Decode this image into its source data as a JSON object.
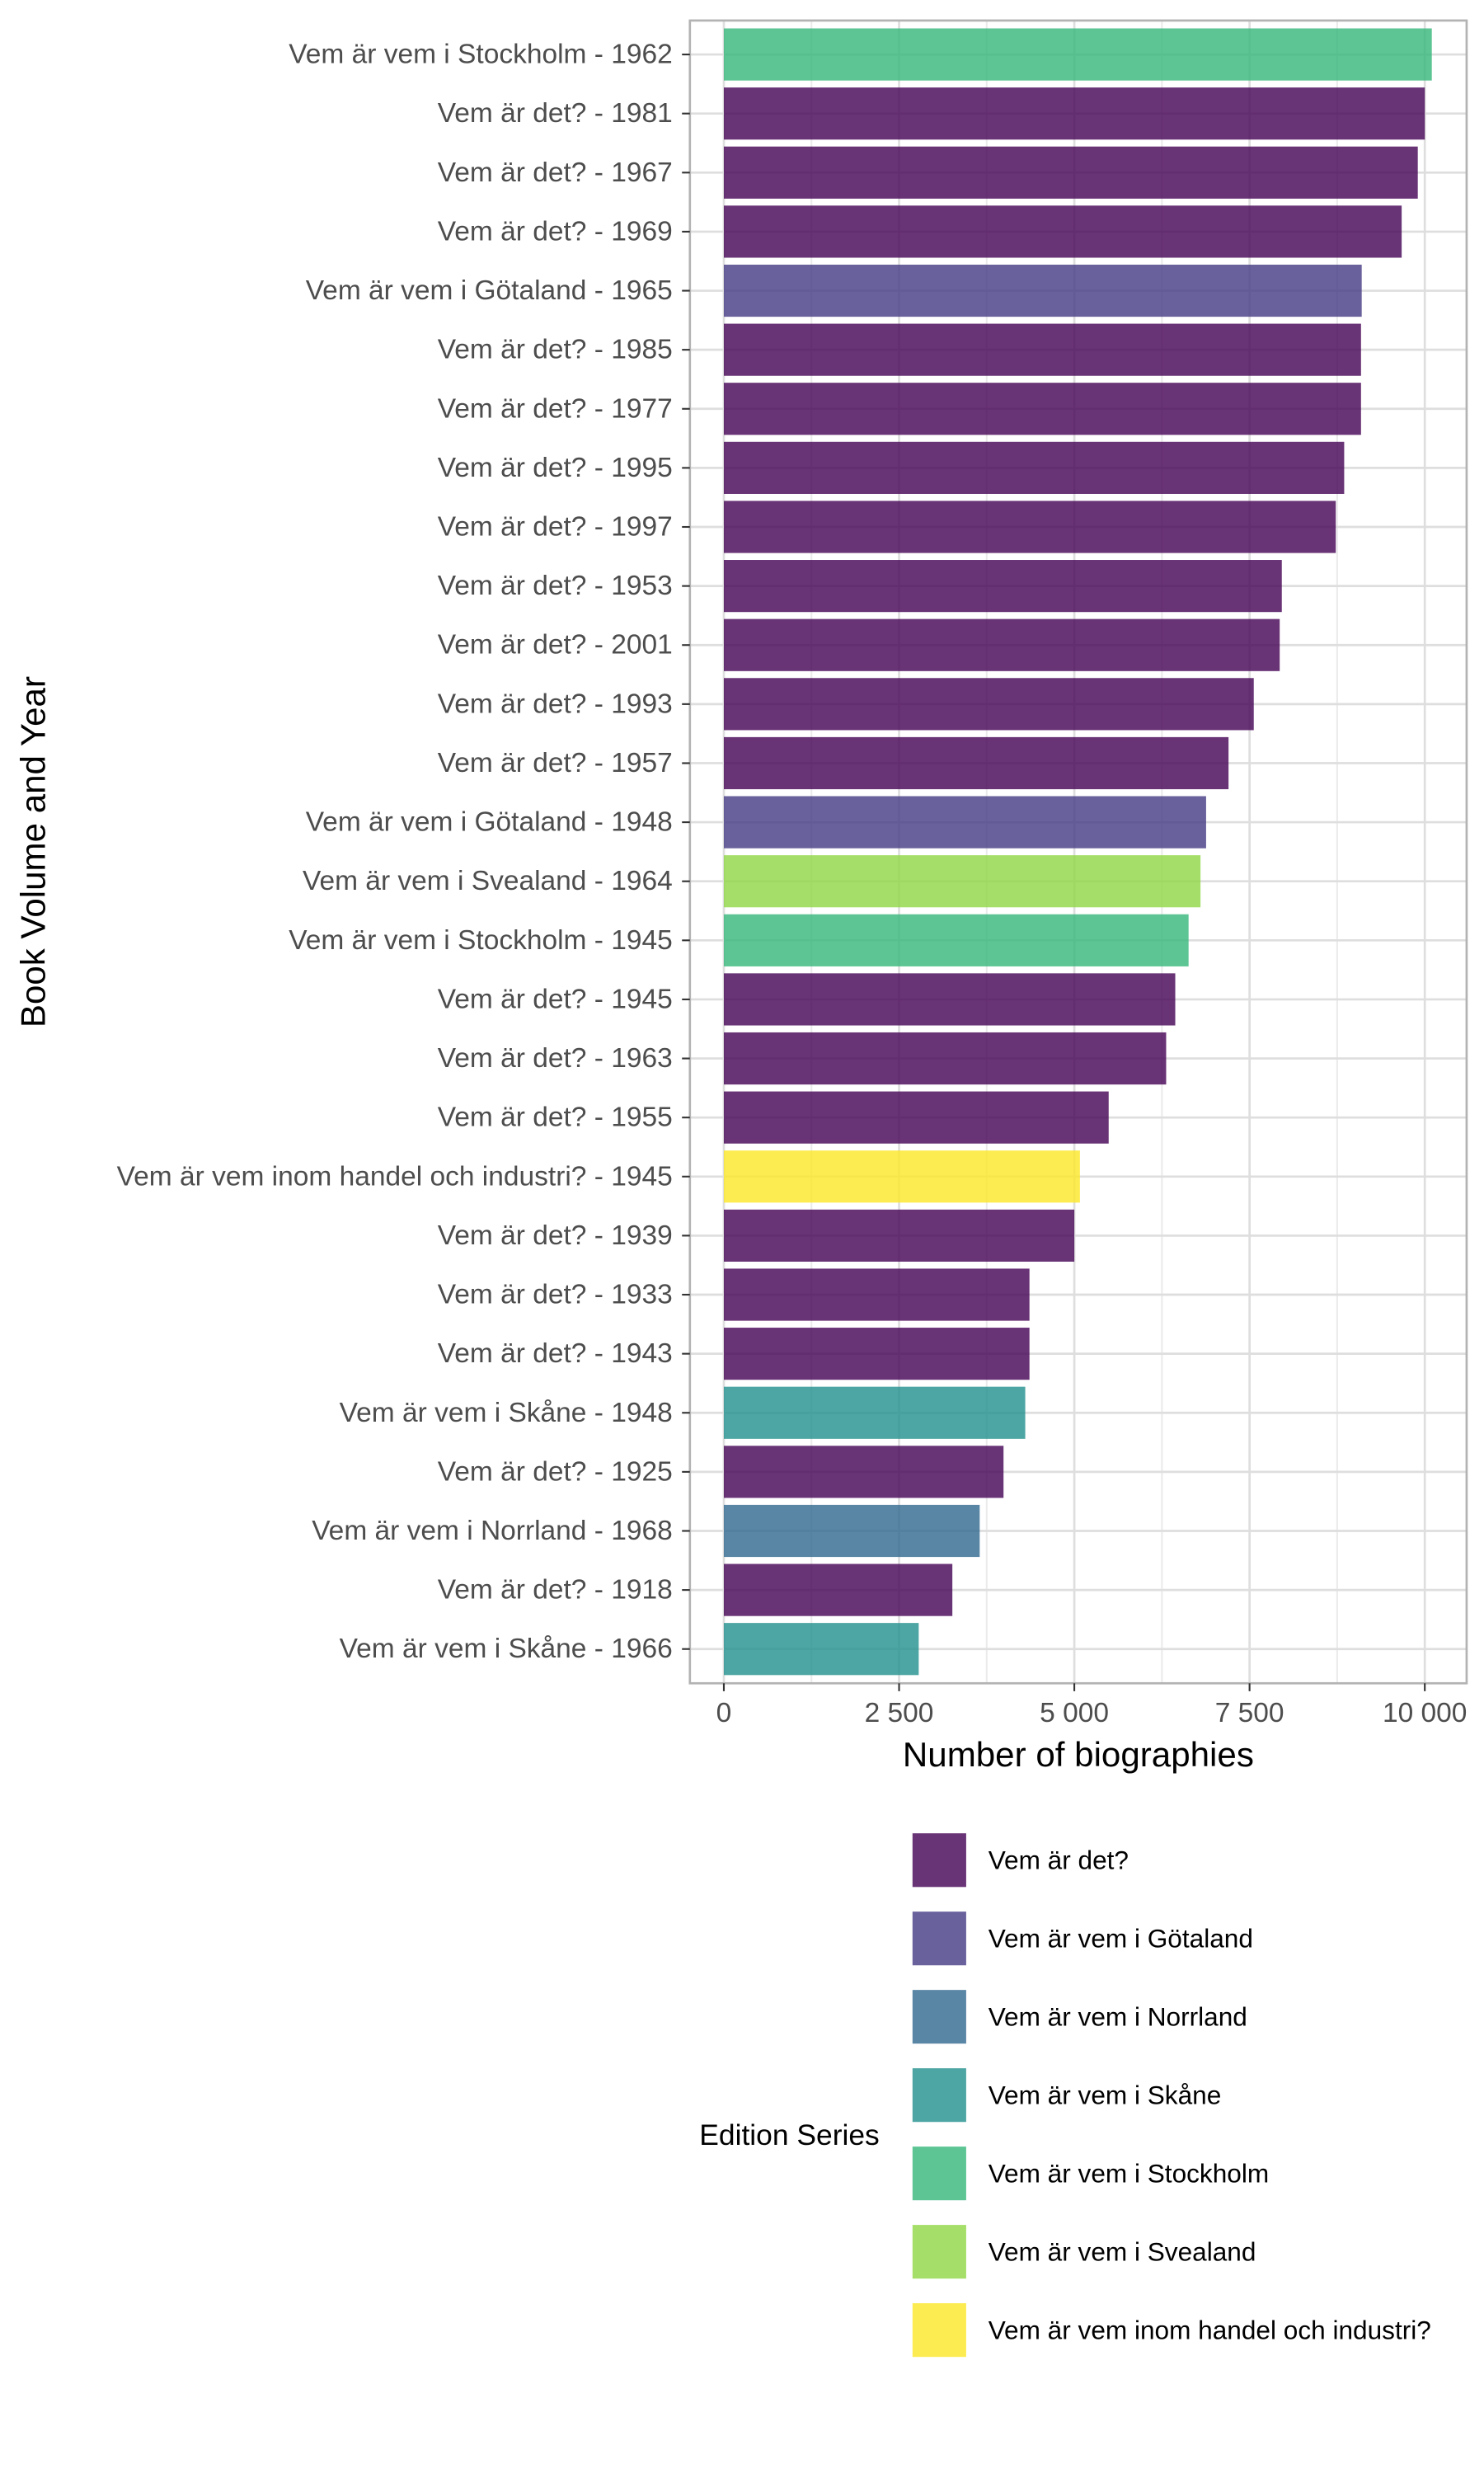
{
  "chart_data": {
    "type": "bar",
    "orientation": "horizontal",
    "xlabel": "Number of biographies",
    "ylabel": "Book Volume and Year",
    "xlim": [
      0,
      10100
    ],
    "xticks": [
      0,
      2500,
      5000,
      7500,
      10000
    ],
    "xtick_labels": [
      "0",
      "2 500",
      "5 000",
      "7 500",
      "10 000"
    ],
    "grid": true,
    "legend": {
      "title": "Edition Series",
      "position": "bottom",
      "entries": [
        {
          "name": "Vem är det?",
          "color": "#440154"
        },
        {
          "name": "Vem är vem i Götaland",
          "color": "#443A83"
        },
        {
          "name": "Vem är vem i Norrland",
          "color": "#31688E"
        },
        {
          "name": "Vem är vem i Skåne",
          "color": "#21908C"
        },
        {
          "name": "Vem är vem i Stockholm",
          "color": "#35B779"
        },
        {
          "name": "Vem är vem i Svealand",
          "color": "#8FD744"
        },
        {
          "name": "Vem är vem inom handel och industri?",
          "color": "#FDE725"
        }
      ]
    },
    "categories": [
      "Vem är vem i Stockholm - 1962",
      "Vem är det? - 1981",
      "Vem är det? - 1967",
      "Vem är det? - 1969",
      "Vem är vem i Götaland - 1965",
      "Vem är det? - 1985",
      "Vem är det? - 1977",
      "Vem är det? - 1995",
      "Vem är det? - 1997",
      "Vem är det? - 1953",
      "Vem är det? - 2001",
      "Vem är det? - 1993",
      "Vem är det? - 1957",
      "Vem är vem i Götaland - 1948",
      "Vem är vem i Svealand - 1964",
      "Vem är vem i Stockholm - 1945",
      "Vem är det? - 1945",
      "Vem är det? - 1963",
      "Vem är det? - 1955",
      "Vem är vem inom handel och industri? - 1945",
      "Vem är det? - 1939",
      "Vem är det? - 1933",
      "Vem är det? - 1943",
      "Vem är vem i Skåne - 1948",
      "Vem är det? - 1925",
      "Vem är vem i Norrland - 1968",
      "Vem är det? - 1918",
      "Vem är vem i Skåne - 1966"
    ],
    "values": [
      10100,
      10000,
      9900,
      9670,
      9100,
      9090,
      9090,
      8850,
      8730,
      7960,
      7930,
      7560,
      7200,
      6880,
      6800,
      6630,
      6440,
      6310,
      5490,
      5080,
      5000,
      4360,
      4360,
      4300,
      3990,
      3650,
      3260,
      2780
    ],
    "series_of_bar": [
      "Vem är vem i Stockholm",
      "Vem är det?",
      "Vem är det?",
      "Vem är det?",
      "Vem är vem i Götaland",
      "Vem är det?",
      "Vem är det?",
      "Vem är det?",
      "Vem är det?",
      "Vem är det?",
      "Vem är det?",
      "Vem är det?",
      "Vem är det?",
      "Vem är vem i Götaland",
      "Vem är vem i Svealand",
      "Vem är vem i Stockholm",
      "Vem är det?",
      "Vem är det?",
      "Vem är det?",
      "Vem är vem inom handel och industri?",
      "Vem är det?",
      "Vem är det?",
      "Vem är det?",
      "Vem är vem i Skåne",
      "Vem är det?",
      "Vem är vem i Norrland",
      "Vem är det?",
      "Vem är vem i Skåne"
    ]
  }
}
